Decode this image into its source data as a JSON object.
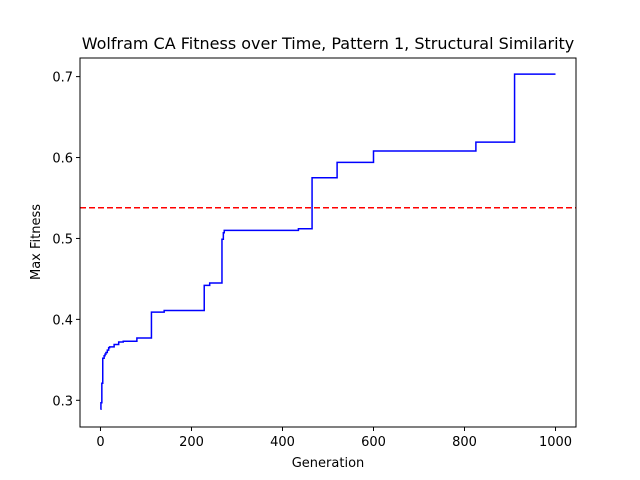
{
  "chart_data": {
    "type": "line",
    "title": "Wolfram CA Fitness over Time, Pattern 1, Structural Similarity",
    "xlabel": "Generation",
    "ylabel": "Max Fitness",
    "xlim": [
      -45,
      1045
    ],
    "ylim": [
      0.267,
      0.723
    ],
    "xticks": [
      0,
      200,
      400,
      600,
      800,
      1000
    ],
    "yticks": [
      0.3,
      0.4,
      0.5,
      0.6,
      0.7
    ],
    "xtick_labels": [
      "0",
      "200",
      "400",
      "600",
      "800",
      "1000"
    ],
    "ytick_labels": [
      "0.3",
      "0.4",
      "0.5",
      "0.6",
      "0.7"
    ],
    "grid": false,
    "legend": "none",
    "series": [
      {
        "color": "#0000ff",
        "style": "solid",
        "step": true,
        "x": [
          0,
          1,
          3,
          5,
          8,
          10,
          12,
          15,
          18,
          20,
          30,
          40,
          50,
          80,
          112,
          140,
          228,
          240,
          267,
          270,
          272,
          435,
          465,
          520,
          600,
          825,
          910,
          1000
        ],
        "y": [
          0.289,
          0.297,
          0.321,
          0.352,
          0.355,
          0.357,
          0.359,
          0.362,
          0.365,
          0.366,
          0.369,
          0.372,
          0.373,
          0.377,
          0.409,
          0.411,
          0.442,
          0.445,
          0.499,
          0.507,
          0.51,
          0.512,
          0.575,
          0.594,
          0.608,
          0.619,
          0.703,
          0.703
        ]
      },
      {
        "color": "#ff0000",
        "style": "dashed",
        "constant_y": 0.538
      }
    ]
  }
}
